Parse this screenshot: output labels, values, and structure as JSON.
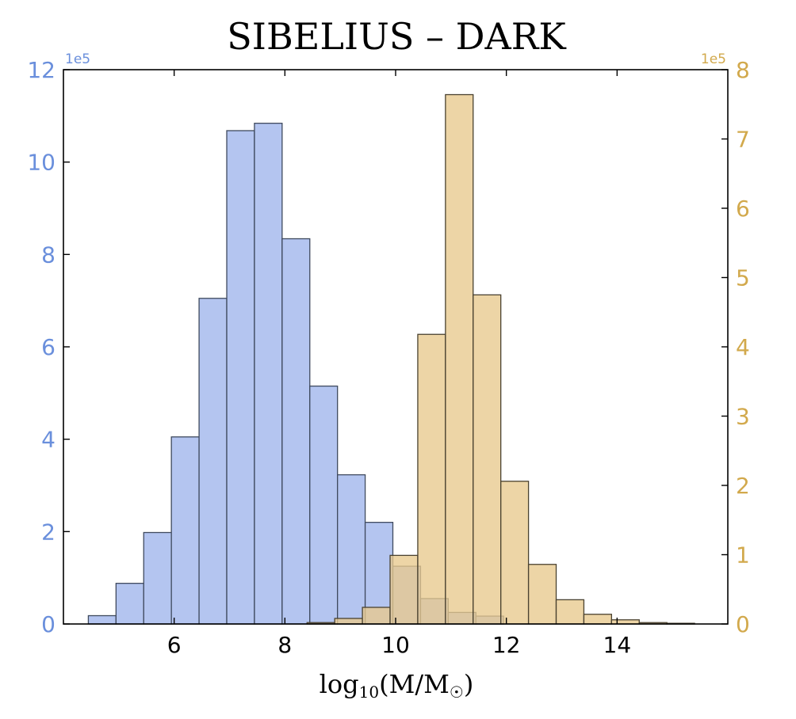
{
  "chart_data": {
    "type": "bar",
    "title": "SIBELIUS – DARK",
    "xlabel": "log10(M/M☉)",
    "xlabel_parts": {
      "pre": "log",
      "sub": "10",
      "post": "(M/M",
      "post_sub": "☉",
      "close": ")"
    },
    "xlim": [
      4.0,
      16.0
    ],
    "xticks": [
      6,
      8,
      10,
      12,
      14
    ],
    "grid": false,
    "legend": "none",
    "axes": {
      "left": {
        "color": "#6a8fdc",
        "ylim": [
          0,
          12
        ],
        "ticks": [
          0,
          2,
          4,
          6,
          8,
          10,
          12
        ],
        "exponent_label": "1e5"
      },
      "right": {
        "color": "#d2a94c",
        "ylim": [
          0,
          8
        ],
        "ticks": [
          0,
          1,
          2,
          3,
          4,
          5,
          6,
          7,
          8
        ],
        "exponent_label": "1e5"
      }
    },
    "series": [
      {
        "axis": "left",
        "fill": "#b4c5f0",
        "edge": "#3f4a5e",
        "bins": [
          {
            "x0": 4.45,
            "x1": 4.95,
            "value": 0.18
          },
          {
            "x0": 4.95,
            "x1": 5.45,
            "value": 0.88
          },
          {
            "x0": 5.45,
            "x1": 5.95,
            "value": 1.98
          },
          {
            "x0": 5.95,
            "x1": 6.45,
            "value": 4.05
          },
          {
            "x0": 6.45,
            "x1": 6.95,
            "value": 7.05
          },
          {
            "x0": 6.95,
            "x1": 7.45,
            "value": 10.68
          },
          {
            "x0": 7.45,
            "x1": 7.95,
            "value": 10.84
          },
          {
            "x0": 7.95,
            "x1": 8.45,
            "value": 8.34
          },
          {
            "x0": 8.45,
            "x1": 8.95,
            "value": 5.15
          },
          {
            "x0": 8.95,
            "x1": 9.45,
            "value": 3.23
          },
          {
            "x0": 9.45,
            "x1": 9.95,
            "value": 2.2
          },
          {
            "x0": 9.95,
            "x1": 10.45,
            "value": 1.25
          },
          {
            "x0": 10.45,
            "x1": 10.95,
            "value": 0.55
          },
          {
            "x0": 10.95,
            "x1": 11.45,
            "value": 0.25
          },
          {
            "x0": 11.45,
            "x1": 11.95,
            "value": 0.17
          }
        ]
      },
      {
        "axis": "right",
        "fill": "#e8c98d",
        "edge": "#4a4230",
        "bins": [
          {
            "x0": 7.9,
            "x1": 8.4,
            "value": 0.0
          },
          {
            "x0": 8.4,
            "x1": 8.9,
            "value": 0.02
          },
          {
            "x0": 8.9,
            "x1": 9.4,
            "value": 0.08
          },
          {
            "x0": 9.4,
            "x1": 9.9,
            "value": 0.24
          },
          {
            "x0": 9.9,
            "x1": 10.4,
            "value": 0.99
          },
          {
            "x0": 10.4,
            "x1": 10.9,
            "value": 4.18
          },
          {
            "x0": 10.9,
            "x1": 11.4,
            "value": 7.64
          },
          {
            "x0": 11.4,
            "x1": 11.9,
            "value": 4.75
          },
          {
            "x0": 11.9,
            "x1": 12.4,
            "value": 2.06
          },
          {
            "x0": 12.4,
            "x1": 12.9,
            "value": 0.86
          },
          {
            "x0": 12.9,
            "x1": 13.4,
            "value": 0.35
          },
          {
            "x0": 13.4,
            "x1": 13.9,
            "value": 0.14
          },
          {
            "x0": 13.9,
            "x1": 14.4,
            "value": 0.06
          },
          {
            "x0": 14.4,
            "x1": 14.9,
            "value": 0.02
          },
          {
            "x0": 14.9,
            "x1": 15.4,
            "value": 0.01
          }
        ]
      }
    ]
  }
}
